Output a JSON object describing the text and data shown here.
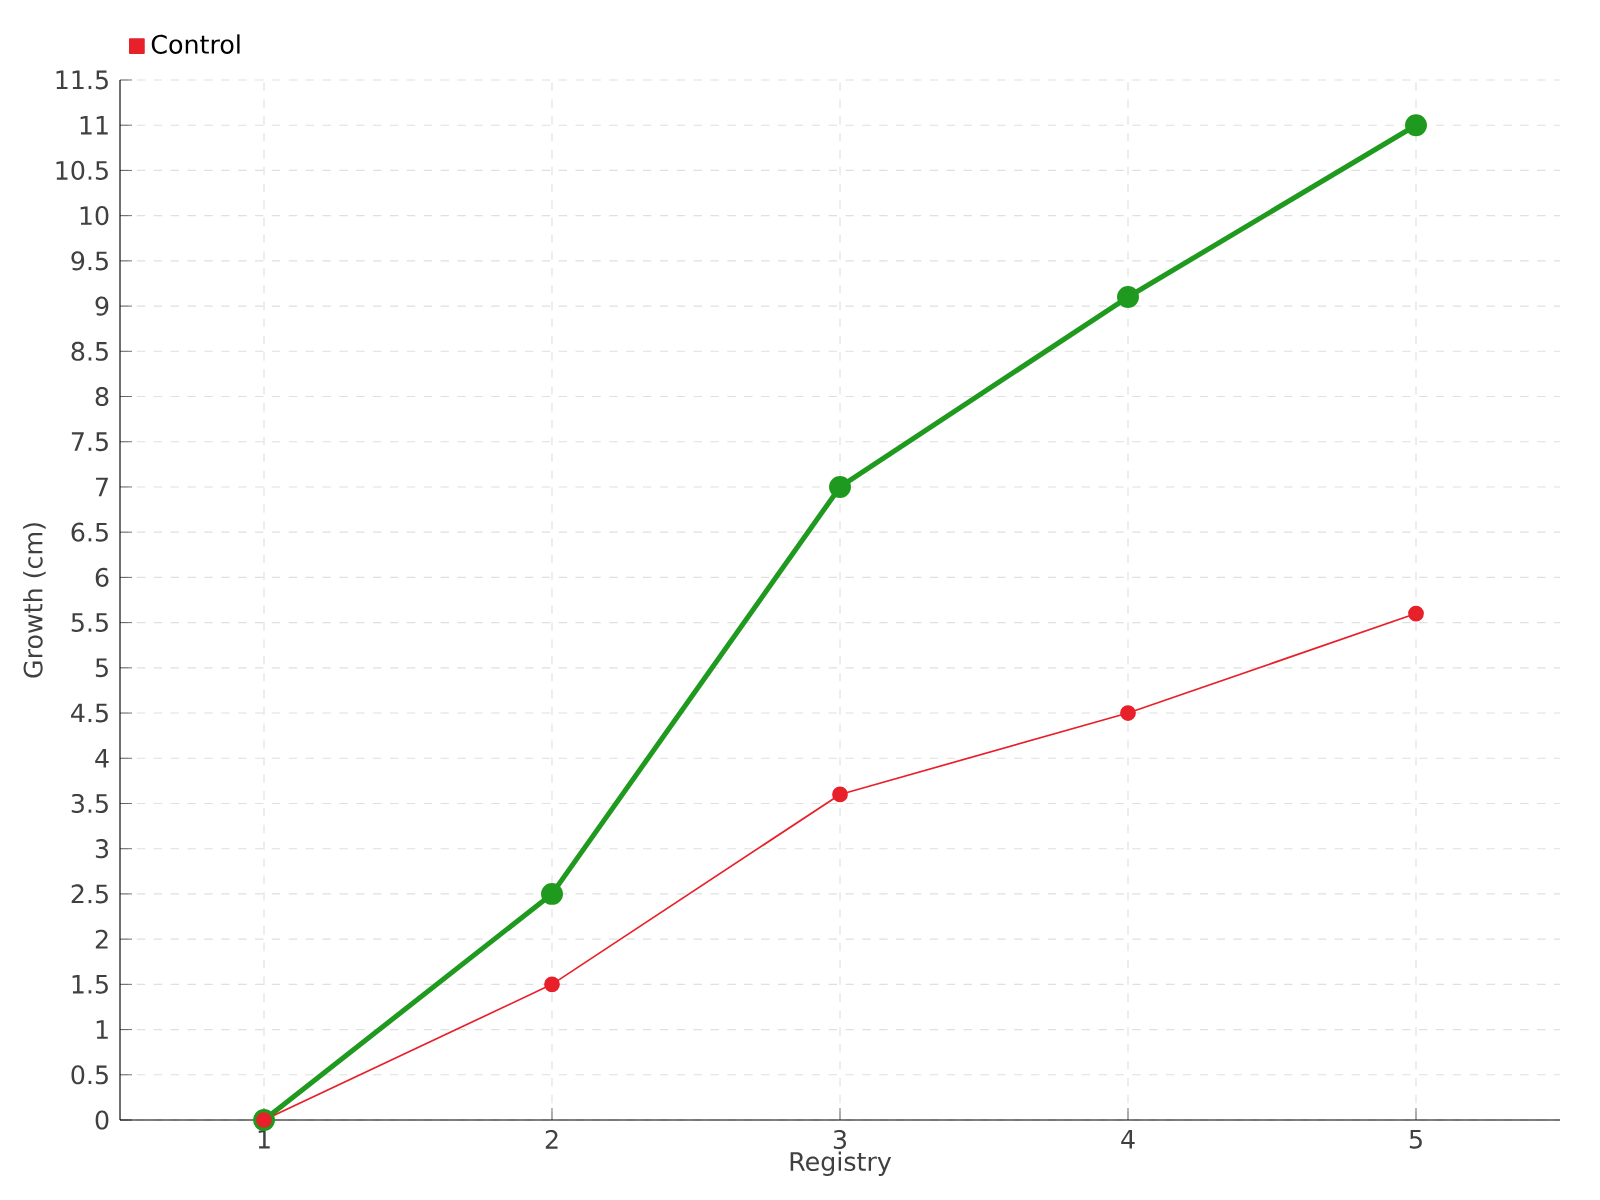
{
  "chart_data": {
    "type": "line",
    "xlabel": "Registry",
    "ylabel": "Growth (cm)",
    "x": [
      1,
      2,
      3,
      4,
      5
    ],
    "series": [
      {
        "color": "#1f9a1f",
        "values": [
          0,
          2.5,
          7,
          9.1,
          11
        ]
      },
      {
        "name": "Control",
        "color": "#e8202a",
        "values": [
          0,
          1.5,
          3.6,
          4.5,
          5.6
        ]
      }
    ],
    "xlim": [
      0.5,
      5.5
    ],
    "xticks": [
      1,
      2,
      3,
      4,
      5
    ],
    "ylim": [
      0,
      11.5
    ],
    "yticks": [
      0,
      0.5,
      1,
      1.5,
      2,
      2.5,
      3,
      3.5,
      4,
      4.5,
      5,
      5.5,
      6,
      6.5,
      7,
      7.5,
      8,
      8.5,
      9,
      9.5,
      10,
      10.5,
      11,
      11.5
    ],
    "grid": true,
    "legend": "top left",
    "marker": "circle",
    "line_style": "solid"
  }
}
